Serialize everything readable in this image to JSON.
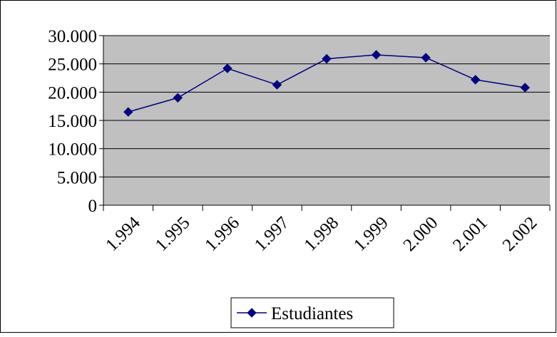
{
  "chart_data": {
    "type": "line",
    "categories": [
      "1.994",
      "1.995",
      "1.996",
      "1.997",
      "1.998",
      "1.999",
      "2.000",
      "2.001",
      "2.002"
    ],
    "series": [
      {
        "name": "Estudiantes",
        "values": [
          16500,
          19000,
          24200,
          21300,
          25900,
          26600,
          26100,
          22200,
          20800
        ],
        "color": "#000080"
      }
    ],
    "yticks": [
      "0",
      "5.000",
      "10.000",
      "15.000",
      "20.000",
      "25.000",
      "30.000"
    ],
    "ylim": [
      0,
      30000
    ],
    "grid": true,
    "legend": "bottom",
    "plot_background": "#c0c0c0"
  }
}
